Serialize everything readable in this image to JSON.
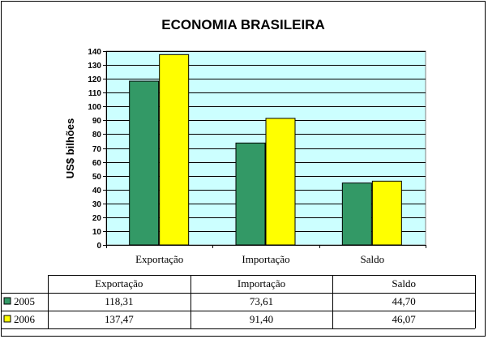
{
  "chart_data": {
    "type": "bar",
    "title": "ECONOMIA BRASILEIRA",
    "ylabel": "US$ bilhões",
    "xlabel": "",
    "categories": [
      "Exportação",
      "Importação",
      "Saldo"
    ],
    "ylim": [
      0,
      140
    ],
    "y_ticks": [
      0,
      10,
      20,
      30,
      40,
      50,
      60,
      70,
      80,
      90,
      100,
      110,
      120,
      130,
      140
    ],
    "grid": true,
    "plot_background": "#ccffff",
    "series": [
      {
        "name": "2005",
        "color": "#339966",
        "values": [
          118.31,
          73.61,
          44.7
        ]
      },
      {
        "name": "2006",
        "color": "#ffff00",
        "values": [
          137.47,
          91.4,
          46.07
        ]
      }
    ],
    "data_table": {
      "headers": [
        "Exportação",
        "Importação",
        "Saldo"
      ],
      "rows": [
        {
          "label": "2005",
          "cells": [
            "118,31",
            "73,61",
            "44,70"
          ]
        },
        {
          "label": "2006",
          "cells": [
            "137,47",
            "91,40",
            "46,07"
          ]
        }
      ]
    }
  }
}
